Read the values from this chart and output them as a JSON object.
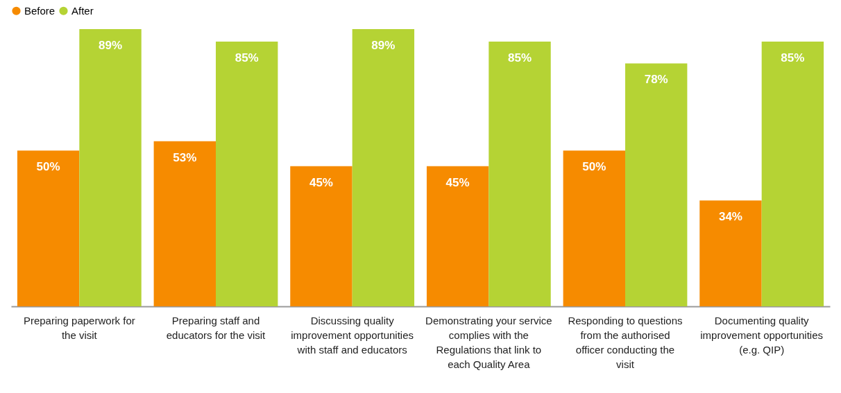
{
  "chart_data": {
    "type": "bar",
    "categories": [
      "Preparing paperwork for the visit",
      "Preparing staff and educators for the visit",
      "Discussing quality improvement opportunities with staff and educators",
      "Demonstrating your service complies with the Regulations that link to each Quality Area",
      "Responding to questions from the authorised officer conducting the visit",
      "Documenting quality improvement opportunities (e.g. QIP)"
    ],
    "series": [
      {
        "name": "Before",
        "color": "#f68b00",
        "values": [
          50,
          53,
          45,
          45,
          50,
          34
        ],
        "value_labels": [
          "50%",
          "53%",
          "45%",
          "45%",
          "50%",
          "34%"
        ]
      },
      {
        "name": "After",
        "color": "#b5d334",
        "values": [
          89,
          85,
          89,
          85,
          78,
          85
        ],
        "value_labels": [
          "89%",
          "85%",
          "89%",
          "85%",
          "78%",
          "85%"
        ]
      }
    ],
    "legend": "top",
    "grid": false
  }
}
